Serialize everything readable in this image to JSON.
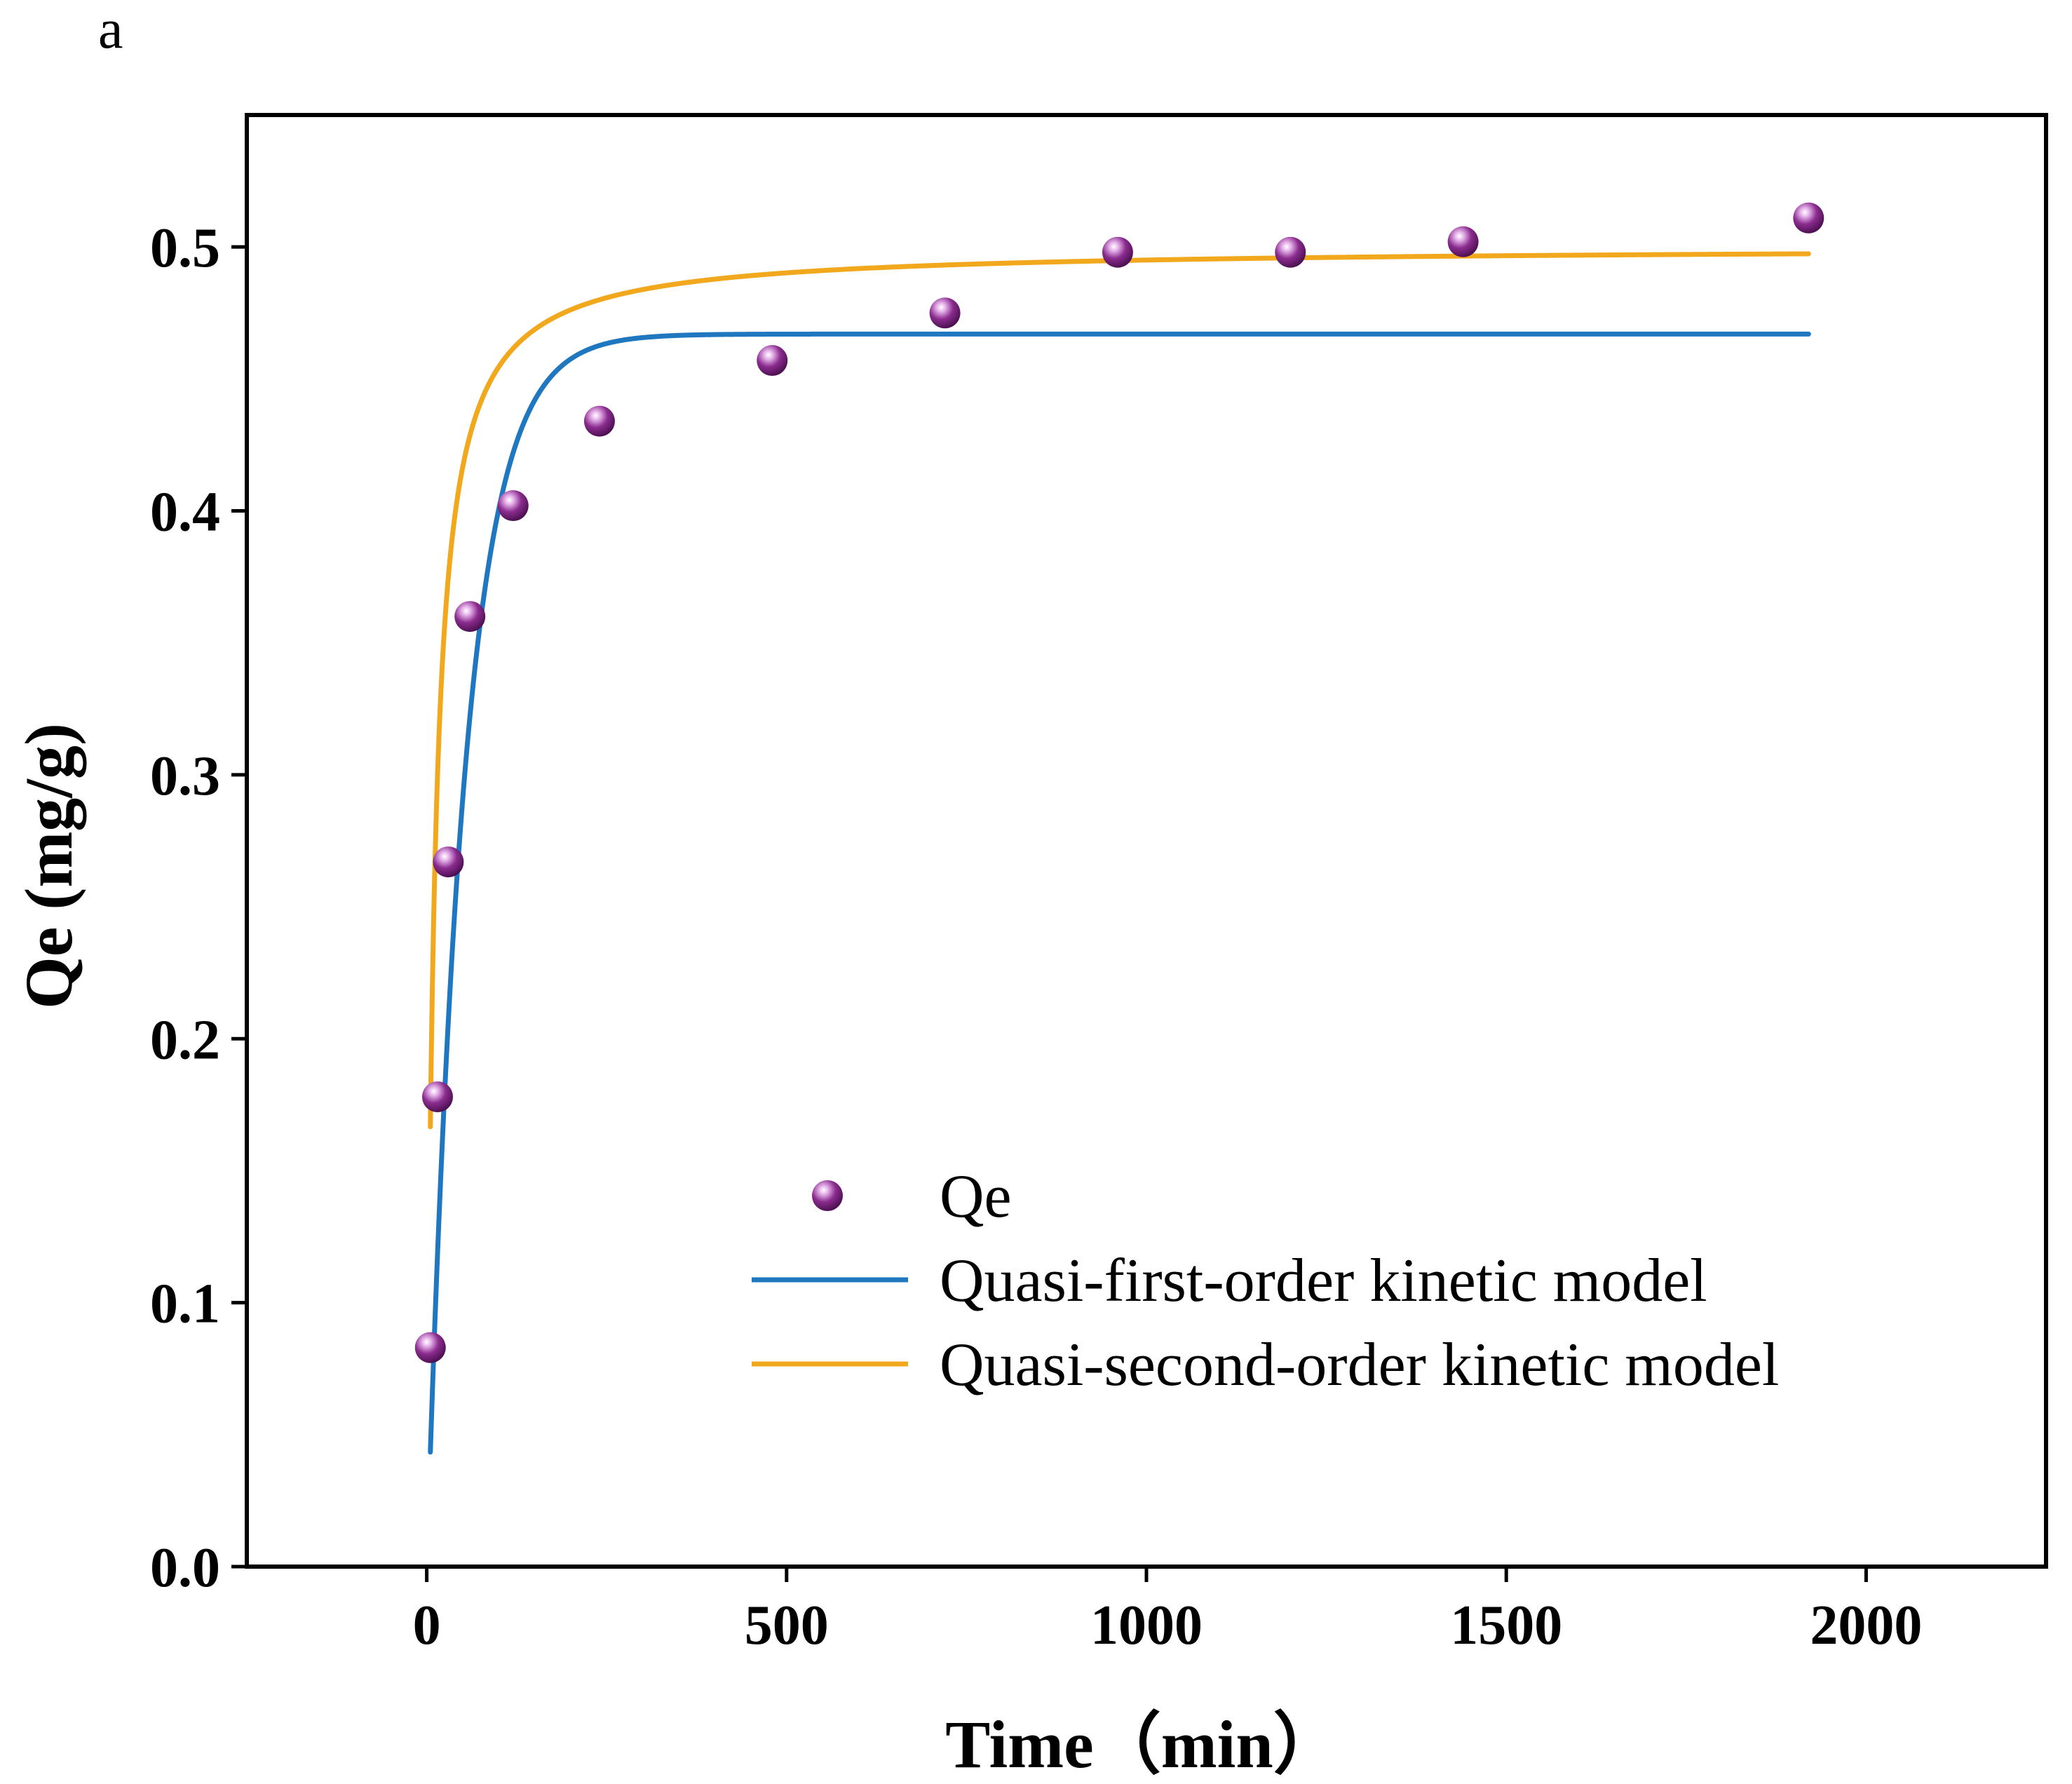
{
  "chart_data": {
    "type": "scatter",
    "panel_label": "a",
    "xlabel": "Time（min）",
    "ylabel": "Qe (mg/g)",
    "xlim": [
      -250,
      2250
    ],
    "ylim": [
      0.0,
      0.55
    ],
    "xticks": [
      0,
      500,
      1000,
      1500,
      2000
    ],
    "xtick_labels": [
      "0",
      "500",
      "1000",
      "1500",
      "2000"
    ],
    "yticks": [
      0.0,
      0.1,
      0.2,
      0.3,
      0.4,
      0.5
    ],
    "ytick_labels": [
      "0.0",
      "0.1",
      "0.2",
      "0.3",
      "0.4",
      "0.5"
    ],
    "grid": false,
    "legend_position": "bottom-right",
    "colors": {
      "points": "#8b2c8f",
      "first_order": "#1f77c0",
      "second_order": "#f2a81d",
      "axes": "#000000"
    },
    "series": [
      {
        "name": "Qe",
        "kind": "points",
        "x": [
          5,
          15,
          30,
          60,
          120,
          240,
          480,
          720,
          960,
          1200,
          1440,
          1920
        ],
        "y": [
          0.083,
          0.178,
          0.267,
          0.36,
          0.402,
          0.434,
          0.457,
          0.475,
          0.498,
          0.498,
          0.502,
          0.511
        ]
      },
      {
        "name": "Quasi-first-order kinetic model",
        "kind": "line",
        "qe": 0.467,
        "k1": 0.0195,
        "x_range": [
          5,
          1920
        ]
      },
      {
        "name": "Quasi-second-order kinetic model",
        "kind": "line",
        "qe": 0.5,
        "k2": 0.2,
        "x_range": [
          5,
          1920
        ]
      }
    ]
  }
}
